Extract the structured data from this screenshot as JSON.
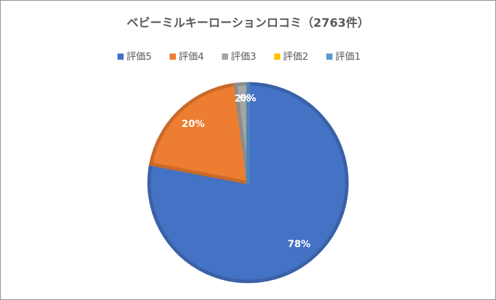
{
  "chart_data": {
    "type": "pie",
    "title": "ベビーミルキーローションロコミ（2763件）",
    "categories": [
      "評価5",
      "評価4",
      "評価3",
      "評価2",
      "評価1"
    ],
    "values": [
      78,
      20,
      2,
      0,
      0
    ],
    "value_labels": [
      "78%",
      "20%",
      "2%",
      "0%",
      "0%"
    ],
    "colors": [
      "#4472c4",
      "#ed7d31",
      "#a5a5a5",
      "#ffc000",
      "#5b9bd5"
    ],
    "legend": "top"
  }
}
